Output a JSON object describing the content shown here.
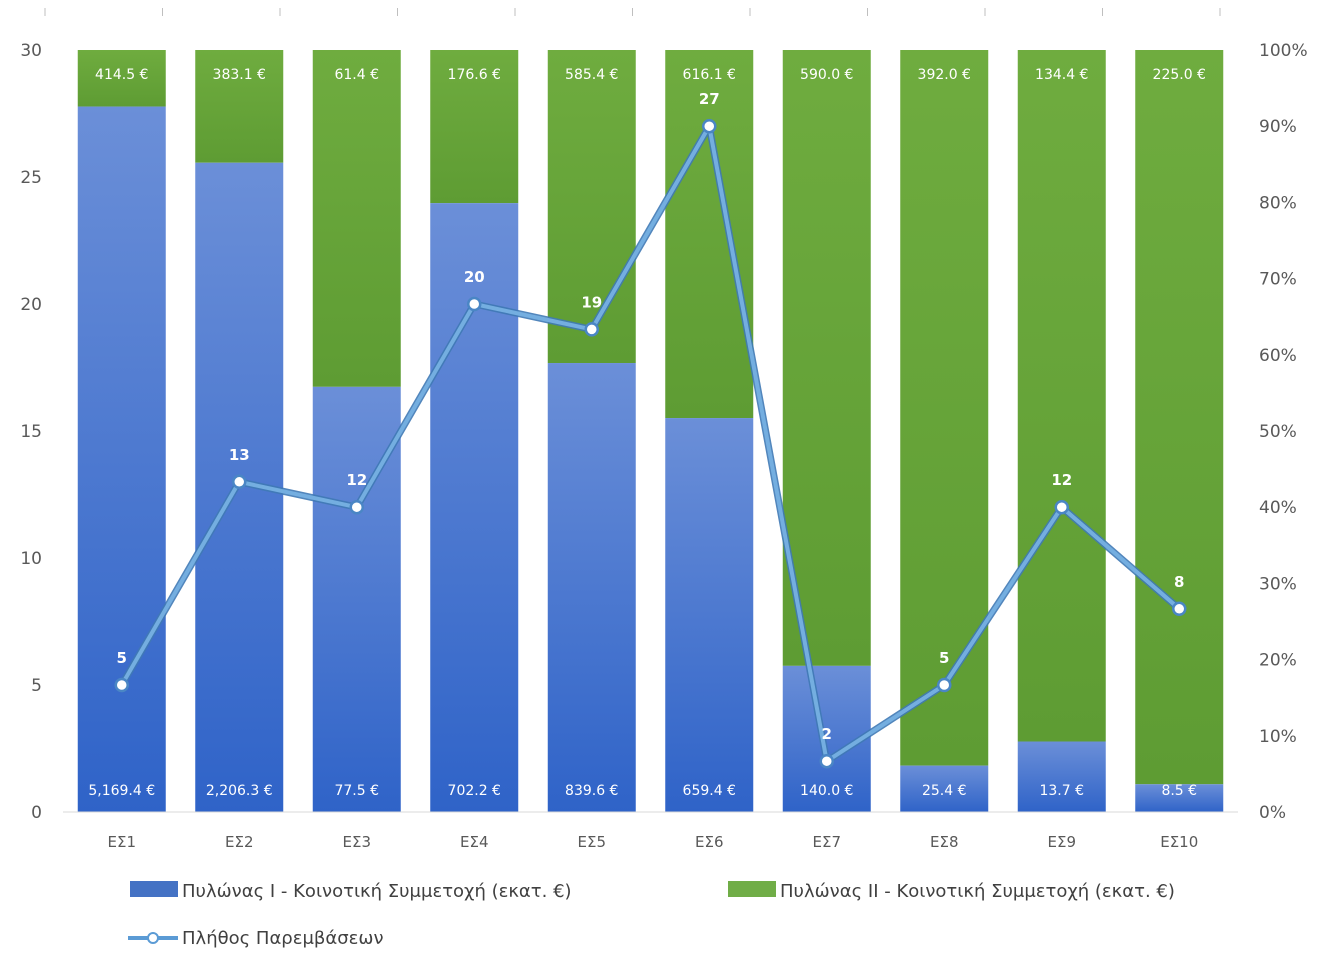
{
  "chart_data": {
    "type": "bar",
    "stacked": "percent",
    "categories": [
      "ΕΣ1",
      "ΕΣ2",
      "ΕΣ3",
      "ΕΣ4",
      "ΕΣ5",
      "ΕΣ6",
      "ΕΣ7",
      "ΕΣ8",
      "ΕΣ9",
      "ΕΣ10"
    ],
    "series": [
      {
        "name": "Πυλώνας Ι - Κοινοτική Συμμετοχή (εκατ. €)",
        "color": "#4472c4",
        "values": [
          5169.4,
          2206.3,
          77.5,
          702.2,
          839.6,
          659.4,
          140.0,
          25.4,
          13.7,
          8.5
        ],
        "labels": [
          "5,169.4 €",
          "2,206.3 €",
          "77.5 €",
          "702.2 €",
          "839.6 €",
          "659.4 €",
          "140.0 €",
          "25.4 €",
          "13.7 €",
          "8.5 €"
        ]
      },
      {
        "name": "Πυλώνας ΙΙ - Κοινοτική Συμμετοχή (εκατ. €)",
        "color": "#70ad47",
        "values": [
          414.5,
          383.1,
          61.4,
          176.6,
          585.4,
          616.1,
          590.0,
          392.0,
          134.4,
          225.0
        ],
        "labels": [
          "414.5 €",
          "383.1 €",
          "61.4 €",
          "176.6 €",
          "585.4 €",
          "616.1 €",
          "590.0 €",
          "392.0 €",
          "134.4 €",
          "225.0 €"
        ]
      }
    ],
    "line": {
      "name": "Πλήθος Παρεμβάσεων",
      "color": "#5b9bd5",
      "values": [
        5,
        13,
        12,
        20,
        19,
        27,
        2,
        5,
        12,
        8
      ]
    },
    "left_axis": {
      "min": 0,
      "max": 30,
      "ticks": [
        "0",
        "5",
        "10",
        "15",
        "20",
        "25",
        "30"
      ]
    },
    "right_axis": {
      "min": 0,
      "max": 100,
      "ticks": [
        "0%",
        "10%",
        "20%",
        "30%",
        "40%",
        "50%",
        "60%",
        "70%",
        "80%",
        "90%",
        "100%"
      ]
    },
    "legend_position": "bottom",
    "grid": false
  }
}
